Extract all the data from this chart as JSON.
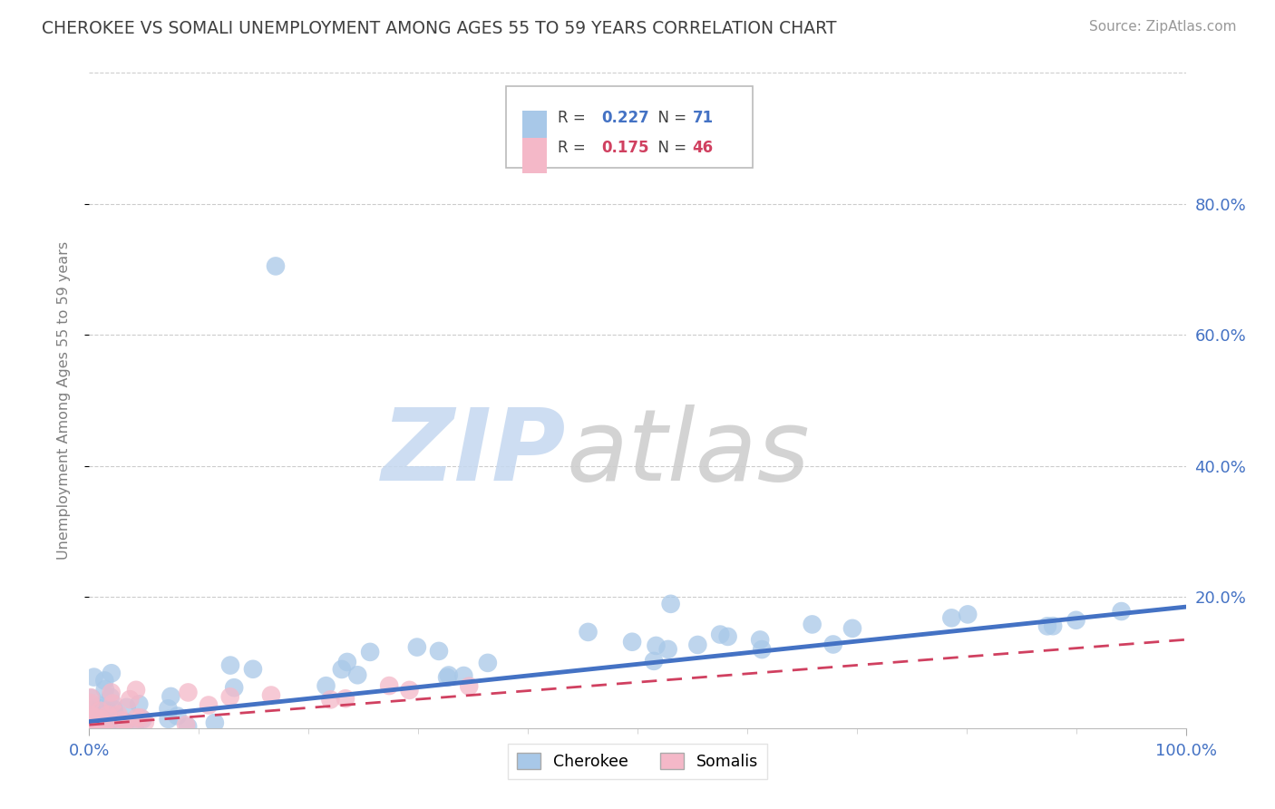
{
  "title": "CHEROKEE VS SOMALI UNEMPLOYMENT AMONG AGES 55 TO 59 YEARS CORRELATION CHART",
  "source": "Source: ZipAtlas.com",
  "ylabel": "Unemployment Among Ages 55 to 59 years",
  "xlim": [
    0,
    1.0
  ],
  "ylim": [
    0,
    1.0
  ],
  "cherokee_R": 0.227,
  "cherokee_N": 71,
  "somali_R": 0.175,
  "somali_N": 46,
  "cherokee_color": "#a8c8e8",
  "cherokee_line_color": "#4472c4",
  "somali_color": "#f4b8c8",
  "somali_line_color": "#d04060",
  "background_color": "#ffffff",
  "grid_color": "#cccccc",
  "title_color": "#404040",
  "axis_label_color": "#808080",
  "tick_label_color": "#4472c4",
  "cherokee_line_x0": 0.0,
  "cherokee_line_y0": 0.01,
  "cherokee_line_x1": 1.0,
  "cherokee_line_y1": 0.185,
  "somali_line_x0": 0.0,
  "somali_line_y0": 0.005,
  "somali_line_x1": 1.0,
  "somali_line_y1": 0.135
}
